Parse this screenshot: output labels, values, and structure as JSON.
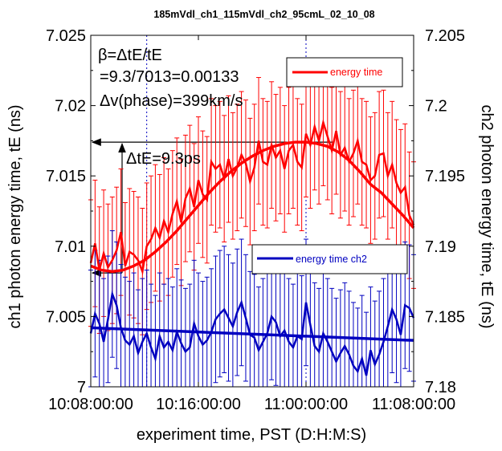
{
  "chart_data": {
    "type": "line",
    "title": "185mVdl_ch1_115mVdl_ch2_95cmL_02_10_08",
    "xlabel": "experiment time, PST (D:H:M:S)",
    "ylabel_left": "ch1 photon energy time, tE (ns)",
    "ylabel_right": "ch2 photon energy time, tE (ns)",
    "x_ticks": [
      "10:08:00:00",
      "10:16:00:00",
      "11:00:00:00",
      "11:08:00:00"
    ],
    "y_left_ticks": [
      "7",
      "7.005",
      "7.01",
      "7.015",
      "7.02",
      "7.025"
    ],
    "y_right_ticks": [
      "7.18",
      "7.185",
      "7.19",
      "7.195",
      "7.2",
      "7.205"
    ],
    "ylim_left": [
      7.0,
      7.025
    ],
    "ylim_right": [
      7.18,
      7.205
    ],
    "x_tick_positions": [
      0,
      1,
      2,
      3
    ],
    "xlim": [
      0,
      3
    ],
    "annotations": {
      "beta": "β=ΔtE/tE",
      "ratio": "=9.3/7013=0.00133",
      "dv": "Δv(phase)=399km/s",
      "dte": "ΔtE=9.3ps"
    },
    "series": [
      {
        "name": "energy time",
        "axis": "left",
        "color": "#ff0000",
        "x": [
          0.0,
          0.04,
          0.08,
          0.12,
          0.16,
          0.2,
          0.24,
          0.28,
          0.32,
          0.36,
          0.4,
          0.44,
          0.48,
          0.52,
          0.56,
          0.6,
          0.64,
          0.68,
          0.72,
          0.76,
          0.8,
          0.84,
          0.88,
          0.92,
          0.96,
          1.0,
          1.04,
          1.08,
          1.12,
          1.16,
          1.2,
          1.24,
          1.28,
          1.32,
          1.36,
          1.4,
          1.44,
          1.48,
          1.52,
          1.56,
          1.6,
          1.64,
          1.68,
          1.72,
          1.76,
          1.8,
          1.84,
          1.88,
          1.92,
          1.96,
          2.0,
          2.04,
          2.08,
          2.12,
          2.16,
          2.2,
          2.24,
          2.28,
          2.32,
          2.36,
          2.4,
          2.44,
          2.48,
          2.52,
          2.56,
          2.6,
          2.64,
          2.68,
          2.72,
          2.76,
          2.8,
          2.84,
          2.88,
          2.92,
          2.96,
          3.0
        ],
        "values": [
          7.0088,
          7.0102,
          7.0083,
          7.0095,
          7.0085,
          7.009,
          7.0097,
          7.011,
          7.0086,
          7.0096,
          7.0094,
          7.009,
          7.0082,
          7.01,
          7.0105,
          7.0113,
          7.0106,
          7.0118,
          7.011,
          7.0123,
          7.0132,
          7.0117,
          7.0134,
          7.0141,
          7.0128,
          7.0147,
          7.0137,
          7.0133,
          7.016,
          7.0155,
          7.0158,
          7.0148,
          7.0162,
          7.015,
          7.0156,
          7.0165,
          7.0159,
          7.0146,
          7.0156,
          7.0175,
          7.016,
          7.0158,
          7.0172,
          7.0163,
          7.0168,
          7.0155,
          7.0168,
          7.0172,
          7.016,
          7.0156,
          7.018,
          7.0172,
          7.0185,
          7.0175,
          7.0188,
          7.0178,
          7.0168,
          7.0182,
          7.0165,
          7.017,
          7.016,
          7.0166,
          7.0175,
          7.016,
          7.0158,
          7.0147,
          7.015,
          7.0165,
          7.0166,
          7.015,
          7.0158,
          7.0145,
          7.0138,
          7.0142,
          7.0122,
          7.0115
        ],
        "error": 0.0045,
        "fit": {
          "x": [
            0.0,
            0.1,
            0.2,
            0.3,
            0.4,
            0.5,
            0.6,
            0.7,
            0.8,
            0.9,
            1.0,
            1.1,
            1.2,
            1.3,
            1.4,
            1.5,
            1.6,
            1.7,
            1.8,
            1.9,
            2.0,
            2.1,
            2.2,
            2.3,
            2.4,
            2.5,
            2.6,
            2.7,
            2.8,
            2.9,
            3.0
          ],
          "values": [
            7.0086,
            7.0083,
            7.0082,
            7.0083,
            7.0086,
            7.009,
            7.0096,
            7.0103,
            7.0111,
            7.012,
            7.0129,
            7.0138,
            7.0146,
            7.0153,
            7.0159,
            7.0164,
            7.0168,
            7.0171,
            7.0173,
            7.0174,
            7.0174,
            7.0173,
            7.0171,
            7.0167,
            7.0161,
            7.0153,
            7.0144,
            7.0138,
            7.013,
            7.0122,
            7.0113
          ]
        }
      },
      {
        "name": "energy time ch2",
        "axis": "right",
        "color": "#0000c0",
        "x": [
          0.0,
          0.04,
          0.08,
          0.12,
          0.16,
          0.2,
          0.24,
          0.28,
          0.32,
          0.36,
          0.4,
          0.44,
          0.48,
          0.52,
          0.56,
          0.6,
          0.64,
          0.68,
          0.72,
          0.76,
          0.8,
          0.84,
          0.88,
          0.92,
          0.96,
          1.0,
          1.04,
          1.08,
          1.12,
          1.16,
          1.2,
          1.24,
          1.28,
          1.32,
          1.36,
          1.4,
          1.44,
          1.48,
          1.52,
          1.56,
          1.6,
          1.64,
          1.68,
          1.72,
          1.76,
          1.8,
          1.84,
          1.88,
          1.92,
          1.96,
          2.0,
          2.04,
          2.08,
          2.12,
          2.16,
          2.2,
          2.24,
          2.28,
          2.32,
          2.36,
          2.4,
          2.44,
          2.48,
          2.52,
          2.56,
          2.6,
          2.64,
          2.68,
          2.72,
          2.76,
          2.8,
          2.84,
          2.88,
          2.92,
          2.96,
          3.0
        ],
        "values": [
          7.1838,
          7.1852,
          7.1845,
          7.1832,
          7.1848,
          7.1866,
          7.1858,
          7.1842,
          7.1833,
          7.183,
          7.1836,
          7.1824,
          7.1832,
          7.1838,
          7.1828,
          7.182,
          7.1836,
          7.1828,
          7.1832,
          7.1826,
          7.1839,
          7.1831,
          7.1825,
          7.1828,
          7.1845,
          7.1836,
          7.183,
          7.1833,
          7.1839,
          7.1848,
          7.1852,
          7.1855,
          7.1849,
          7.1843,
          7.1853,
          7.186,
          7.1849,
          7.1837,
          7.1835,
          7.1826,
          7.1832,
          7.1838,
          7.185,
          7.1846,
          7.1836,
          7.184,
          7.1832,
          7.1828,
          7.1836,
          7.1834,
          7.186,
          7.1844,
          7.1829,
          7.1825,
          7.1838,
          7.1832,
          7.1825,
          7.1818,
          7.1824,
          7.1829,
          7.1823,
          7.1815,
          7.1811,
          7.182,
          7.1808,
          7.1826,
          7.1816,
          7.1823,
          7.1832,
          7.1843,
          7.1855,
          7.1848,
          7.1837,
          7.1858,
          7.1856,
          7.1849
        ],
        "error": 0.0045,
        "fit": {
          "x": [
            0,
            3
          ],
          "values": [
            7.1842,
            7.1833
          ]
        }
      }
    ],
    "reference_lines": {
      "vertical_dotted_x": [
        0.52,
        2.0
      ],
      "horizontal_arrow_y_left": [
        7.0174,
        7.0081
      ]
    },
    "legend": [
      "energy time",
      "energy time ch2"
    ]
  }
}
